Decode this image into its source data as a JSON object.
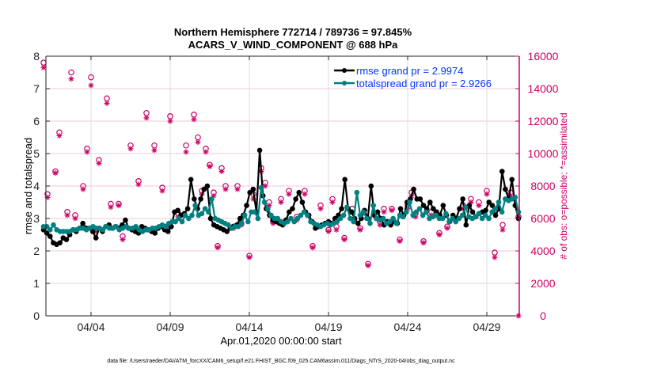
{
  "chart_data": {
    "type": "line",
    "title": [
      "Northern Hemisphere 772714 / 789736 = 97.845%",
      "ACARS_V_WIND_COMPONENT @ 688 hPa"
    ],
    "xlabel": "Apr.01,2020 00:00:00 start",
    "ylabel": "rmse and totalspread",
    "y2label": "# of obs: o=possible; *=assimilated",
    "x_ticks": [
      {
        "day": 3,
        "label": "04/04"
      },
      {
        "day": 8,
        "label": "04/09"
      },
      {
        "day": 13,
        "label": "04/14"
      },
      {
        "day": 18,
        "label": "04/19"
      },
      {
        "day": 23,
        "label": "04/24"
      },
      {
        "day": 28,
        "label": "04/29"
      }
    ],
    "xlim_days": [
      0,
      30
    ],
    "x_step_days": 0.25,
    "ylim": [
      0,
      8
    ],
    "y_ticks": [
      0,
      1,
      2,
      3,
      4,
      5,
      6,
      7,
      8
    ],
    "y2lim": [
      0,
      16000
    ],
    "y2_ticks": [
      0,
      2000,
      4000,
      6000,
      8000,
      10000,
      12000,
      14000,
      16000
    ],
    "grid": true,
    "legend_placement": "top-right",
    "colors": {
      "rmse": "#000000",
      "totalspread": "#008080",
      "obs": "#cc0066",
      "legend_text": "#0033ff",
      "axis_right": "#cc0066"
    },
    "series": [
      {
        "name": "rmse grand pr = 2.9974",
        "key": "rmse",
        "values": [
          2.65,
          2.55,
          2.45,
          2.25,
          2.2,
          2.25,
          2.4,
          2.35,
          2.5,
          2.65,
          2.6,
          2.7,
          2.85,
          2.7,
          2.7,
          2.6,
          2.4,
          2.7,
          2.6,
          2.75,
          2.8,
          2.7,
          2.75,
          2.7,
          2.8,
          2.95,
          2.7,
          2.65,
          2.6,
          2.55,
          2.75,
          2.7,
          2.65,
          2.6,
          2.55,
          2.7,
          2.75,
          2.65,
          2.6,
          2.75,
          3.2,
          3.25,
          3.1,
          3.15,
          3.3,
          4.2,
          3.6,
          3.3,
          3.6,
          3.9,
          4.0,
          3.0,
          2.8,
          2.75,
          2.7,
          2.65,
          2.6,
          2.7,
          2.75,
          2.8,
          3.0,
          3.1,
          3.4,
          3.8,
          3.9,
          3.2,
          5.1,
          3.7,
          3.3,
          3.1,
          2.95,
          2.9,
          2.85,
          2.8,
          2.95,
          3.2,
          3.3,
          3.6,
          3.8,
          3.5,
          3.2,
          3.1,
          2.9,
          2.7,
          2.75,
          2.8,
          2.85,
          2.9,
          2.85,
          3.0,
          3.1,
          3.3,
          4.2,
          3.3,
          3.2,
          3.0,
          2.85,
          3.0,
          3.25,
          3.0,
          4.0,
          3.1,
          3.2,
          3.0,
          2.8,
          2.9,
          2.8,
          2.9,
          2.85,
          3.3,
          3.1,
          3.5,
          3.6,
          3.9,
          3.6,
          3.6,
          3.4,
          3.3,
          3.5,
          3.3,
          3.2,
          3.1,
          3.4,
          3.1,
          2.9,
          3.1,
          3.0,
          3.3,
          3.6,
          2.8,
          3.4,
          3.2,
          3.05,
          3.15,
          3.2,
          3.25,
          3.5,
          3.4,
          3.1,
          3.3,
          4.45,
          3.9,
          3.6,
          4.2,
          3.4,
          3.0
        ]
      },
      {
        "name": "totalspread grand pr = 2.9266",
        "key": "totalspread",
        "values": [
          2.75,
          2.75,
          2.65,
          2.8,
          2.65,
          2.6,
          2.6,
          2.6,
          2.6,
          2.65,
          2.65,
          2.7,
          2.7,
          2.65,
          2.7,
          2.75,
          2.7,
          2.7,
          2.65,
          2.75,
          2.7,
          2.7,
          2.75,
          2.65,
          2.7,
          2.75,
          2.7,
          2.7,
          2.75,
          2.65,
          2.6,
          2.65,
          2.65,
          2.7,
          2.7,
          2.75,
          2.8,
          2.75,
          2.85,
          2.9,
          2.9,
          3.0,
          2.9,
          3.1,
          3.0,
          3.1,
          3.4,
          3.1,
          3.15,
          3.3,
          3.2,
          3.6,
          3.0,
          2.95,
          2.9,
          2.85,
          2.8,
          2.7,
          2.75,
          2.75,
          2.85,
          3.1,
          2.9,
          3.2,
          3.2,
          3.0,
          3.95,
          3.5,
          3.3,
          3.1,
          3.0,
          3.0,
          2.9,
          2.85,
          2.9,
          3.0,
          2.9,
          3.0,
          3.1,
          3.2,
          3.1,
          2.9,
          2.85,
          2.8,
          2.75,
          2.8,
          2.85,
          2.8,
          2.85,
          2.9,
          3.0,
          3.1,
          3.35,
          3.0,
          2.9,
          3.8,
          3.1,
          3.2,
          3.0,
          2.85,
          3.4,
          3.0,
          2.95,
          3.0,
          2.85,
          2.9,
          3.0,
          2.85,
          3.1,
          3.05,
          3.2,
          3.5,
          3.1,
          3.2,
          3.3,
          3.1,
          3.2,
          3.0,
          3.05,
          3.1,
          3.0,
          3.0,
          3.15,
          2.9,
          3.0,
          2.9,
          3.0,
          3.1,
          3.35,
          3.05,
          3.0,
          3.05,
          3.15,
          3.0,
          3.1,
          3.0,
          3.2,
          3.3,
          3.5,
          3.2,
          3.6,
          3.55,
          3.6,
          3.65,
          3.2
        ]
      },
      {
        "name": "possible obs",
        "key": "possible",
        "axis": "right",
        "marker": "o",
        "points": [
          [
            0,
            15600
          ],
          [
            0.25,
            7500
          ],
          [
            0.75,
            8900
          ],
          [
            1,
            11300
          ],
          [
            1.5,
            6400
          ],
          [
            1.75,
            15000
          ],
          [
            2,
            6200
          ],
          [
            2.5,
            8000
          ],
          [
            2.75,
            10300
          ],
          [
            3,
            14700
          ],
          [
            3.25,
            5300
          ],
          [
            3.5,
            9600
          ],
          [
            4,
            13400
          ],
          [
            4.25,
            6900
          ],
          [
            4.75,
            6900
          ],
          [
            5,
            4900
          ],
          [
            5.5,
            10500
          ],
          [
            6,
            8300
          ],
          [
            6.5,
            12500
          ],
          [
            7,
            10500
          ],
          [
            7.5,
            7900
          ],
          [
            7.75,
            5500
          ],
          [
            8,
            12300
          ],
          [
            8.5,
            6300
          ],
          [
            9,
            10500
          ],
          [
            9.5,
            12400
          ],
          [
            9.75,
            11000
          ],
          [
            10,
            7700
          ],
          [
            10.25,
            10300
          ],
          [
            10.5,
            9300
          ],
          [
            10.75,
            7600
          ],
          [
            11,
            4300
          ],
          [
            11.25,
            9100
          ],
          [
            11.5,
            8000
          ],
          [
            12,
            5500
          ],
          [
            12.25,
            8000
          ],
          [
            12.5,
            5700
          ],
          [
            13,
            3700
          ],
          [
            13.25,
            7500
          ],
          [
            13.75,
            9100
          ],
          [
            14,
            8200
          ],
          [
            14.25,
            7000
          ],
          [
            14.5,
            5800
          ],
          [
            15,
            7200
          ],
          [
            15.5,
            7700
          ],
          [
            16,
            6100
          ],
          [
            16.5,
            7700
          ],
          [
            17,
            4300
          ],
          [
            17.5,
            6800
          ],
          [
            18,
            5300
          ],
          [
            18.25,
            7200
          ],
          [
            18.5,
            5500
          ],
          [
            19,
            4800
          ],
          [
            19.5,
            6600
          ],
          [
            20,
            5400
          ],
          [
            20.5,
            3200
          ],
          [
            21,
            6200
          ],
          [
            21.25,
            5800
          ],
          [
            21.5,
            6600
          ],
          [
            22,
            6600
          ],
          [
            22.5,
            4700
          ],
          [
            23,
            6800
          ],
          [
            23.25,
            7600
          ],
          [
            23.5,
            6300
          ],
          [
            24,
            4600
          ],
          [
            24.5,
            6400
          ],
          [
            25,
            5100
          ],
          [
            25.5,
            5500
          ],
          [
            26,
            6000
          ],
          [
            26.5,
            6800
          ],
          [
            27,
            7200
          ],
          [
            27.5,
            7000
          ],
          [
            28,
            7700
          ],
          [
            28.5,
            3900
          ],
          [
            29,
            5600
          ],
          [
            29.5,
            7600
          ],
          [
            30,
            6100
          ]
        ]
      },
      {
        "name": "assimilated obs",
        "key": "assimilated",
        "axis": "right",
        "marker": "*",
        "points": [
          [
            0,
            15300
          ],
          [
            0.25,
            7300
          ],
          [
            0.75,
            8800
          ],
          [
            1,
            11100
          ],
          [
            1.5,
            6200
          ],
          [
            1.75,
            14600
          ],
          [
            2,
            6000
          ],
          [
            2.5,
            7800
          ],
          [
            2.75,
            10100
          ],
          [
            3,
            14200
          ],
          [
            3.25,
            5200
          ],
          [
            3.5,
            9400
          ],
          [
            4,
            13100
          ],
          [
            4.25,
            6700
          ],
          [
            4.75,
            6800
          ],
          [
            5,
            4700
          ],
          [
            5.5,
            10300
          ],
          [
            6,
            8100
          ],
          [
            6.5,
            12200
          ],
          [
            7,
            10200
          ],
          [
            7.5,
            7700
          ],
          [
            7.75,
            5400
          ],
          [
            8,
            12000
          ],
          [
            8.5,
            6100
          ],
          [
            9,
            10100
          ],
          [
            9.5,
            12100
          ],
          [
            9.75,
            10700
          ],
          [
            10,
            7500
          ],
          [
            10.25,
            10100
          ],
          [
            10.5,
            9200
          ],
          [
            10.75,
            7400
          ],
          [
            11,
            4200
          ],
          [
            11.25,
            8900
          ],
          [
            11.5,
            7800
          ],
          [
            12,
            5400
          ],
          [
            12.25,
            7800
          ],
          [
            12.5,
            5600
          ],
          [
            13,
            3600
          ],
          [
            13.25,
            7200
          ],
          [
            13.75,
            8900
          ],
          [
            14,
            8000
          ],
          [
            14.25,
            6800
          ],
          [
            14.5,
            5700
          ],
          [
            15,
            7000
          ],
          [
            15.5,
            7500
          ],
          [
            16,
            5900
          ],
          [
            16.5,
            7500
          ],
          [
            17,
            4200
          ],
          [
            17.5,
            6600
          ],
          [
            18,
            5200
          ],
          [
            18.25,
            7000
          ],
          [
            18.5,
            5300
          ],
          [
            19,
            4700
          ],
          [
            19.5,
            6400
          ],
          [
            20,
            5300
          ],
          [
            20.5,
            3100
          ],
          [
            21,
            6000
          ],
          [
            21.25,
            5600
          ],
          [
            21.5,
            6400
          ],
          [
            22,
            6500
          ],
          [
            22.5,
            4600
          ],
          [
            23,
            6600
          ],
          [
            23.25,
            7400
          ],
          [
            23.5,
            6100
          ],
          [
            24,
            4500
          ],
          [
            24.5,
            6200
          ],
          [
            25,
            5000
          ],
          [
            25.5,
            5400
          ],
          [
            26,
            5900
          ],
          [
            26.5,
            6600
          ],
          [
            27,
            7000
          ],
          [
            27.5,
            6800
          ],
          [
            28,
            7500
          ],
          [
            28.5,
            3600
          ],
          [
            29,
            5300
          ],
          [
            29.5,
            7400
          ],
          [
            30,
            0
          ]
        ]
      }
    ]
  },
  "footer": {
    "data_file": "data file: /Users/raeder/DAI/ATM_forcXX/CAM6_setup/f.e21.FHIST_BGC.f09_025.CAM6assim.011/Diags_NTrS_2020-04/obs_diag_output.nc"
  }
}
